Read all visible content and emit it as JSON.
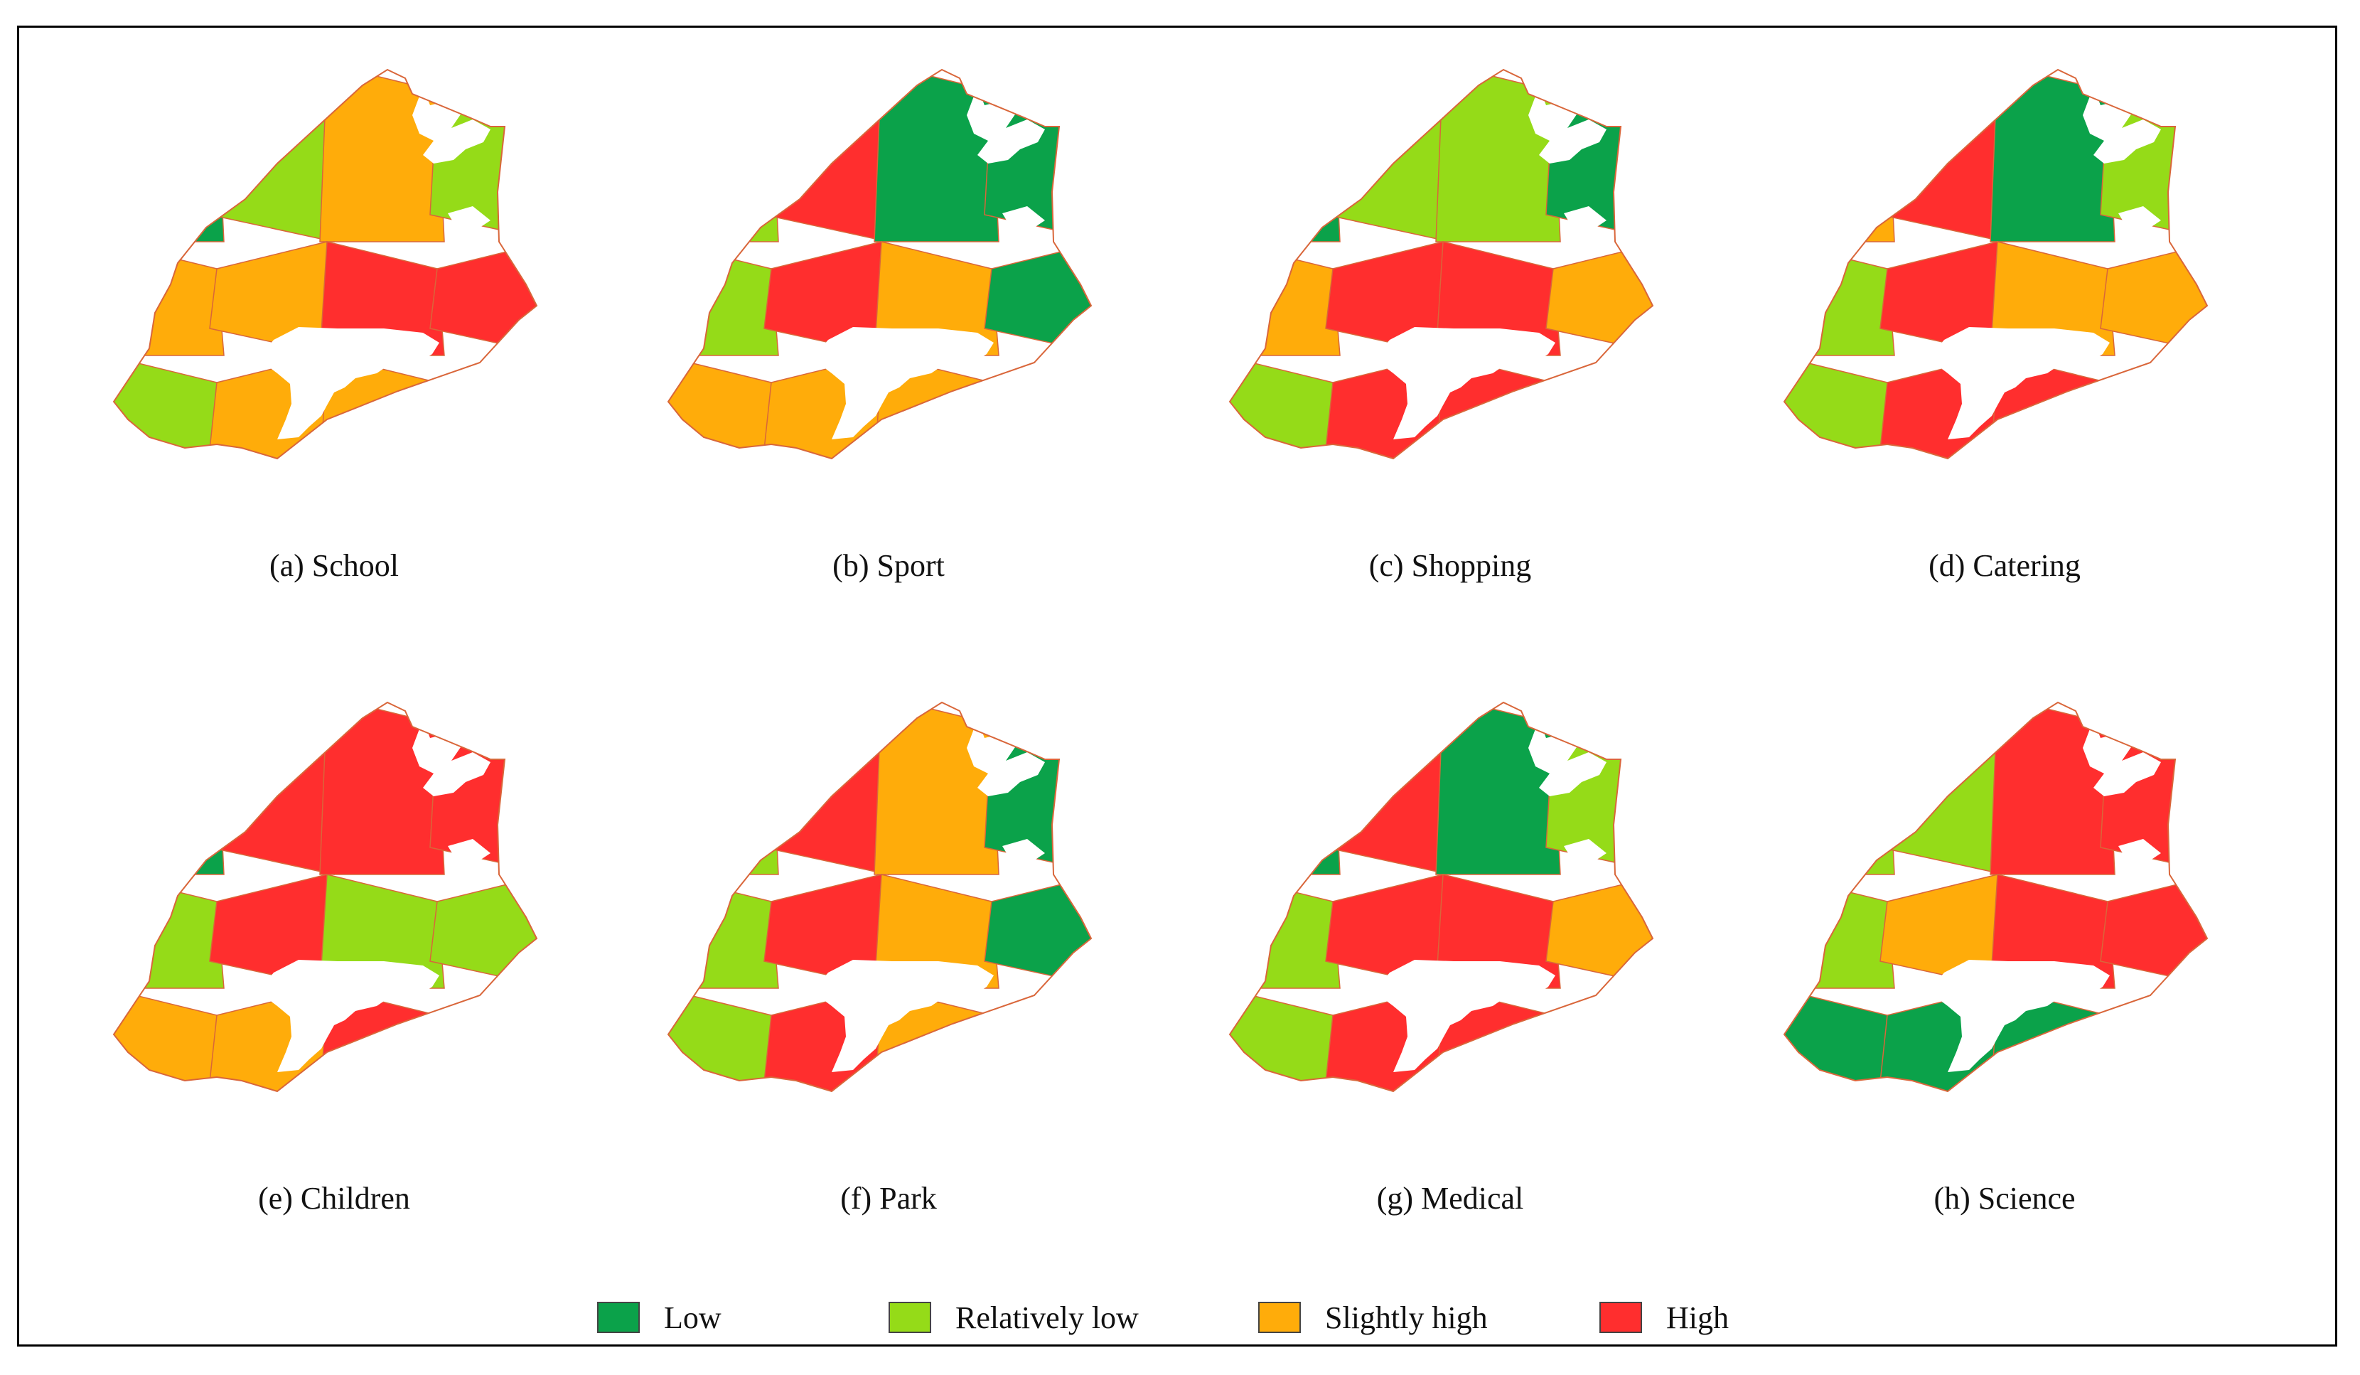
{
  "colors": {
    "low": "#0ba24a",
    "relatively_low": "#95db18",
    "slightly_high": "#ffac0a",
    "high": "#ff2e2e",
    "outline": "#d9663a"
  },
  "panels": [
    {
      "caption": "(a) School",
      "zones": [
        [
          "low",
          "relatively_low",
          "slightly_high",
          "relatively_low"
        ],
        [
          "slightly_high",
          "slightly_high",
          "high",
          "high"
        ],
        [
          "relatively_low",
          "slightly_high",
          "slightly_high",
          "slightly_high"
        ]
      ]
    },
    {
      "caption": "(b) Sport",
      "zones": [
        [
          "relatively_low",
          "high",
          "low",
          "low"
        ],
        [
          "relatively_low",
          "high",
          "slightly_high",
          "low"
        ],
        [
          "slightly_high",
          "slightly_high",
          "slightly_high",
          "slightly_high"
        ]
      ]
    },
    {
      "caption": "(c) Shopping",
      "zones": [
        [
          "low",
          "relatively_low",
          "relatively_low",
          "low"
        ],
        [
          "slightly_high",
          "high",
          "high",
          "slightly_high"
        ],
        [
          "relatively_low",
          "high",
          "high",
          "slightly_high"
        ]
      ]
    },
    {
      "caption": "(d) Catering",
      "zones": [
        [
          "slightly_high",
          "high",
          "low",
          "relatively_low"
        ],
        [
          "relatively_low",
          "high",
          "slightly_high",
          "slightly_high"
        ],
        [
          "relatively_low",
          "high",
          "high",
          "slightly_high"
        ]
      ]
    },
    {
      "caption": "(e) Children",
      "zones": [
        [
          "low",
          "high",
          "high",
          "high"
        ],
        [
          "relatively_low",
          "high",
          "relatively_low",
          "relatively_low"
        ],
        [
          "slightly_high",
          "slightly_high",
          "high",
          "high"
        ]
      ]
    },
    {
      "caption": "(f) Park",
      "zones": [
        [
          "relatively_low",
          "high",
          "slightly_high",
          "low"
        ],
        [
          "relatively_low",
          "high",
          "slightly_high",
          "low"
        ],
        [
          "relatively_low",
          "high",
          "slightly_high",
          "low"
        ]
      ]
    },
    {
      "caption": "(g) Medical",
      "zones": [
        [
          "low",
          "high",
          "low",
          "relatively_low"
        ],
        [
          "relatively_low",
          "high",
          "high",
          "slightly_high"
        ],
        [
          "relatively_low",
          "high",
          "high",
          "slightly_high"
        ]
      ]
    },
    {
      "caption": "(h) Science",
      "zones": [
        [
          "relatively_low",
          "relatively_low",
          "high",
          "high"
        ],
        [
          "relatively_low",
          "slightly_high",
          "high",
          "high"
        ],
        [
          "low",
          "low",
          "low",
          "high"
        ]
      ]
    }
  ],
  "legend": [
    {
      "key": "low",
      "label": "Low"
    },
    {
      "key": "relatively_low",
      "label": "Relatively low"
    },
    {
      "key": "slightly_high",
      "label": "Slightly high"
    },
    {
      "key": "high",
      "label": "High"
    }
  ]
}
